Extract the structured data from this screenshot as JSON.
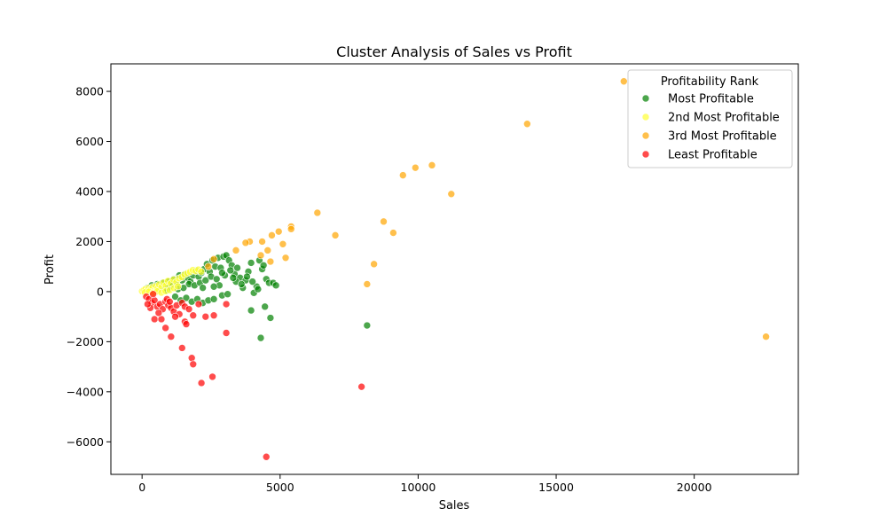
{
  "chart_data": {
    "type": "scatter",
    "title": "Cluster Analysis of Sales vs Profit",
    "xlabel": "Sales",
    "ylabel": "Profit",
    "xlim": [
      -1130,
      23770
    ],
    "ylim": [
      -7300,
      9100
    ],
    "xticks": [
      0,
      5000,
      10000,
      15000,
      20000
    ],
    "yticks": [
      -6000,
      -4000,
      -2000,
      0,
      2000,
      4000,
      6000,
      8000
    ],
    "xtick_labels": [
      "0",
      "5000",
      "10000",
      "15000",
      "20000"
    ],
    "ytick_labels": [
      "−6000",
      "−4000",
      "−2000",
      "0",
      "2000",
      "4000",
      "6000",
      "8000"
    ],
    "grid": false,
    "legend": {
      "title": "Profitability Rank",
      "placement": "top-right"
    },
    "series": [
      {
        "name": "Most Profitable",
        "color": "#008000",
        "points": [
          [
            200,
            150
          ],
          [
            350,
            250
          ],
          [
            450,
            100
          ],
          [
            550,
            300
          ],
          [
            650,
            200
          ],
          [
            750,
            350
          ],
          [
            850,
            150
          ],
          [
            950,
            400
          ],
          [
            1050,
            250
          ],
          [
            1150,
            500
          ],
          [
            1250,
            300
          ],
          [
            1350,
            650
          ],
          [
            1450,
            450
          ],
          [
            1550,
            700
          ],
          [
            1650,
            550
          ],
          [
            1750,
            400
          ],
          [
            1850,
            650
          ],
          [
            1950,
            850
          ],
          [
            2050,
            600
          ],
          [
            2150,
            750
          ],
          [
            2250,
            900
          ],
          [
            2350,
            1100
          ],
          [
            2450,
            800
          ],
          [
            2550,
            1250
          ],
          [
            2650,
            1000
          ],
          [
            2750,
            1350
          ],
          [
            2850,
            950
          ],
          [
            2950,
            1400
          ],
          [
            3050,
            1450
          ],
          [
            3150,
            1250
          ],
          [
            3250,
            1050
          ],
          [
            3350,
            700
          ],
          [
            3450,
            950
          ],
          [
            3550,
            550
          ],
          [
            3650,
            150
          ],
          [
            3750,
            450
          ],
          [
            3850,
            800
          ],
          [
            3950,
            1150
          ],
          [
            4050,
            -50
          ],
          [
            4150,
            200
          ],
          [
            4250,
            1250
          ],
          [
            4350,
            900
          ],
          [
            4400,
            1050
          ],
          [
            4500,
            500
          ],
          [
            4600,
            350
          ],
          [
            4750,
            350
          ],
          [
            4850,
            250
          ],
          [
            1200,
            -200
          ],
          [
            1400,
            -350
          ],
          [
            1600,
            -250
          ],
          [
            1800,
            -400
          ],
          [
            2000,
            -300
          ],
          [
            2200,
            -450
          ],
          [
            2400,
            -350
          ],
          [
            2600,
            -300
          ],
          [
            2900,
            -150
          ],
          [
            3100,
            -100
          ],
          [
            3950,
            -750
          ],
          [
            4300,
            -1850
          ],
          [
            4450,
            -600
          ],
          [
            4650,
            -1050
          ],
          [
            8150,
            -1350
          ],
          [
            1000,
            200
          ],
          [
            1300,
            100
          ],
          [
            1700,
            300
          ],
          [
            1900,
            250
          ],
          [
            2100,
            350
          ],
          [
            2300,
            450
          ],
          [
            2500,
            600
          ],
          [
            2700,
            500
          ],
          [
            2800,
            250
          ],
          [
            3000,
            650
          ],
          [
            3200,
            850
          ],
          [
            3400,
            400
          ],
          [
            3600,
            300
          ],
          [
            3800,
            600
          ],
          [
            4000,
            400
          ],
          [
            4200,
            100
          ],
          [
            600,
            100
          ],
          [
            900,
            50
          ],
          [
            1100,
            350
          ],
          [
            1500,
            150
          ],
          [
            2200,
            150
          ],
          [
            2600,
            200
          ],
          [
            2900,
            750
          ],
          [
            3300,
            550
          ]
        ]
      },
      {
        "name": "2nd Most Profitable",
        "color": "#FFFF33",
        "points": [
          [
            0,
            20
          ],
          [
            60,
            60
          ],
          [
            120,
            100
          ],
          [
            180,
            40
          ],
          [
            240,
            140
          ],
          [
            300,
            80
          ],
          [
            380,
            180
          ],
          [
            440,
            30
          ],
          [
            500,
            220
          ],
          [
            560,
            120
          ],
          [
            620,
            280
          ],
          [
            700,
            180
          ],
          [
            780,
            360
          ],
          [
            860,
            240
          ],
          [
            940,
            430
          ],
          [
            1040,
            330
          ],
          [
            1140,
            480
          ],
          [
            1240,
            380
          ],
          [
            1340,
            530
          ],
          [
            1440,
            580
          ],
          [
            1540,
            680
          ],
          [
            1640,
            740
          ],
          [
            1740,
            790
          ],
          [
            1840,
            860
          ],
          [
            1940,
            820
          ],
          [
            2040,
            880
          ],
          [
            2140,
            800
          ],
          [
            100,
            -30
          ],
          [
            250,
            0
          ],
          [
            400,
            -50
          ],
          [
            550,
            10
          ],
          [
            700,
            -40
          ],
          [
            850,
            20
          ],
          [
            1000,
            60
          ],
          [
            1150,
            140
          ],
          [
            1300,
            210
          ]
        ]
      },
      {
        "name": "3rd Most Profitable",
        "color": "#FFA500",
        "points": [
          [
            17450,
            8400
          ],
          [
            13950,
            6700
          ],
          [
            10500,
            5050
          ],
          [
            9900,
            4950
          ],
          [
            9450,
            4650
          ],
          [
            11200,
            3900
          ],
          [
            6350,
            3150
          ],
          [
            8750,
            2800
          ],
          [
            5400,
            2600
          ],
          [
            4950,
            2400
          ],
          [
            9100,
            2350
          ],
          [
            4700,
            2250
          ],
          [
            7000,
            2250
          ],
          [
            5400,
            2500
          ],
          [
            3900,
            2000
          ],
          [
            3750,
            1950
          ],
          [
            4350,
            2000
          ],
          [
            5100,
            1900
          ],
          [
            4550,
            1650
          ],
          [
            3400,
            1650
          ],
          [
            4300,
            1450
          ],
          [
            5200,
            1350
          ],
          [
            4650,
            1200
          ],
          [
            8400,
            1100
          ],
          [
            8150,
            300
          ],
          [
            22600,
            -1800
          ],
          [
            2600,
            1300
          ],
          [
            2400,
            1000
          ]
        ]
      },
      {
        "name": "Least Profitable",
        "color": "#FF0000",
        "points": [
          [
            150,
            -200
          ],
          [
            250,
            -300
          ],
          [
            350,
            -450
          ],
          [
            450,
            -350
          ],
          [
            550,
            -600
          ],
          [
            650,
            -500
          ],
          [
            750,
            -700
          ],
          [
            850,
            -400
          ],
          [
            950,
            -550
          ],
          [
            1050,
            -650
          ],
          [
            1150,
            -800
          ],
          [
            1250,
            -550
          ],
          [
            1350,
            -900
          ],
          [
            1450,
            -450
          ],
          [
            1550,
            -600
          ],
          [
            1700,
            -700
          ],
          [
            1850,
            -950
          ],
          [
            2050,
            -500
          ],
          [
            2300,
            -1000
          ],
          [
            2600,
            -950
          ],
          [
            3050,
            -500
          ],
          [
            450,
            -1100
          ],
          [
            700,
            -1100
          ],
          [
            850,
            -1450
          ],
          [
            1050,
            -1800
          ],
          [
            1550,
            -1200
          ],
          [
            1450,
            -2250
          ],
          [
            1800,
            -2650
          ],
          [
            1850,
            -2900
          ],
          [
            2150,
            -3650
          ],
          [
            2550,
            -3400
          ],
          [
            3050,
            -1650
          ],
          [
            7950,
            -3800
          ],
          [
            4500,
            -6600
          ],
          [
            300,
            -650
          ],
          [
            600,
            -850
          ],
          [
            900,
            -300
          ],
          [
            1200,
            -1000
          ],
          [
            1600,
            -1300
          ],
          [
            400,
            -100
          ],
          [
            1000,
            -400
          ],
          [
            200,
            -500
          ]
        ]
      }
    ]
  }
}
